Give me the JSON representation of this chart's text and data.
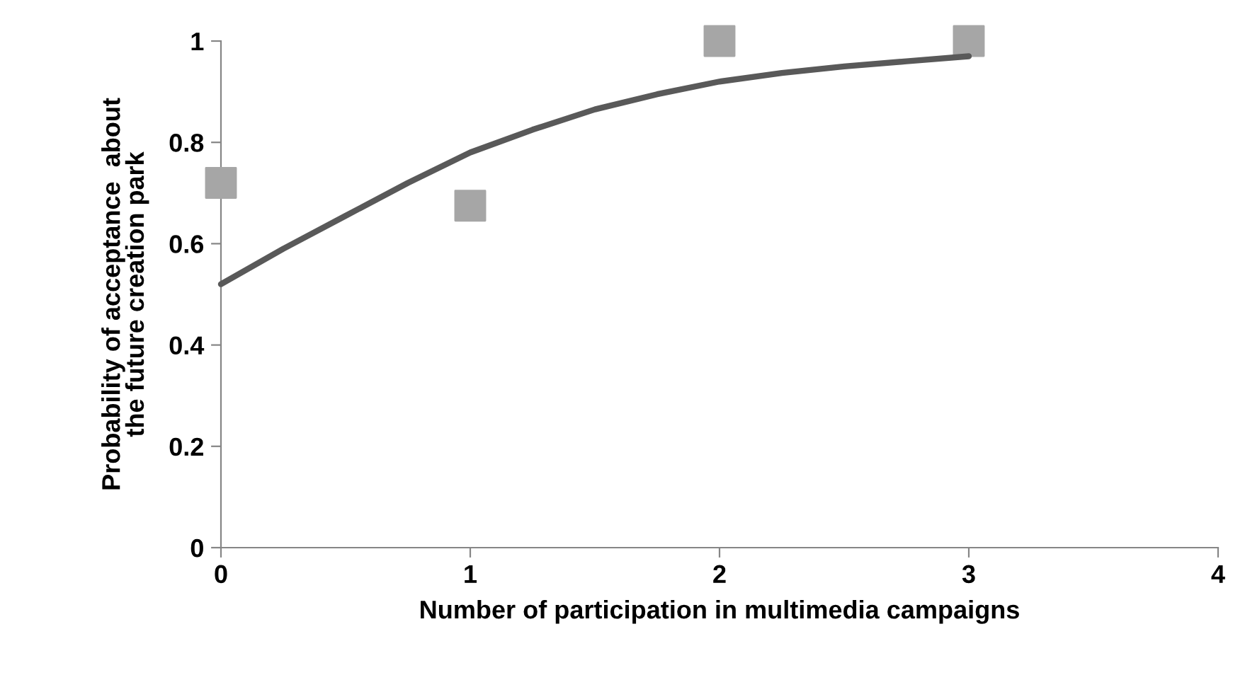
{
  "chart_data": {
    "type": "scatter",
    "xlabel": "Number of participation in multimedia campaigns",
    "ylabel": "Probability of acceptance  about\nthe future creation park",
    "series": [
      {
        "color": "#a6a6a6",
        "marker": "square",
        "x": [
          0,
          1,
          2,
          3
        ],
        "values": [
          0.72,
          0.675,
          1,
          1
        ]
      },
      {
        "type": "line",
        "color": "#595959",
        "marker": "none",
        "line_style": "solid",
        "x": [
          0,
          0.25,
          0.5,
          0.75,
          1,
          1.25,
          1.5,
          1.75,
          2,
          2.25,
          2.5,
          2.75,
          3
        ],
        "values": [
          0.52,
          0.59,
          0.655,
          0.72,
          0.78,
          0.825,
          0.865,
          0.895,
          0.92,
          0.937,
          0.95,
          0.96,
          0.97
        ]
      }
    ],
    "xlim": [
      0,
      4
    ],
    "xticks": [
      0,
      1,
      2,
      3,
      4
    ],
    "ylim": [
      0,
      1
    ],
    "yticks": [
      0,
      0.2,
      0.4,
      0.6,
      0.8,
      1
    ],
    "grid": false,
    "legend": false
  }
}
